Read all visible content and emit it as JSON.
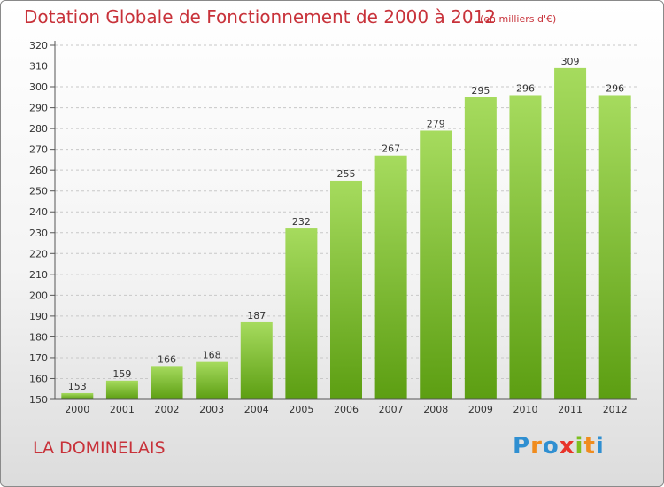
{
  "header": {
    "title": "Dotation Globale de Fonctionnement de 2000 à 2012",
    "unit": "(en milliers d'€)"
  },
  "footer": {
    "commune": "LA DOMINELAIS",
    "logo": [
      "P",
      "r",
      "o",
      "x",
      "i",
      "t",
      "i"
    ]
  },
  "colors": {
    "bar_top": "#a6db5e",
    "bar_bottom": "#5c9e12",
    "title": "#c8323a"
  },
  "chart_data": {
    "type": "bar",
    "title": "Dotation Globale de Fonctionnement de 2000 à 2012",
    "subtitle": "(en milliers d'€)",
    "categories": [
      "2000",
      "2001",
      "2002",
      "2003",
      "2004",
      "2005",
      "2006",
      "2007",
      "2008",
      "2009",
      "2010",
      "2011",
      "2012"
    ],
    "values": [
      153,
      159,
      166,
      168,
      187,
      232,
      255,
      267,
      279,
      295,
      296,
      309,
      296
    ],
    "ylim": [
      150,
      320
    ],
    "yticks": [
      150,
      160,
      170,
      180,
      190,
      200,
      210,
      220,
      230,
      240,
      250,
      260,
      270,
      280,
      290,
      300,
      310,
      320
    ],
    "grid": true
  }
}
